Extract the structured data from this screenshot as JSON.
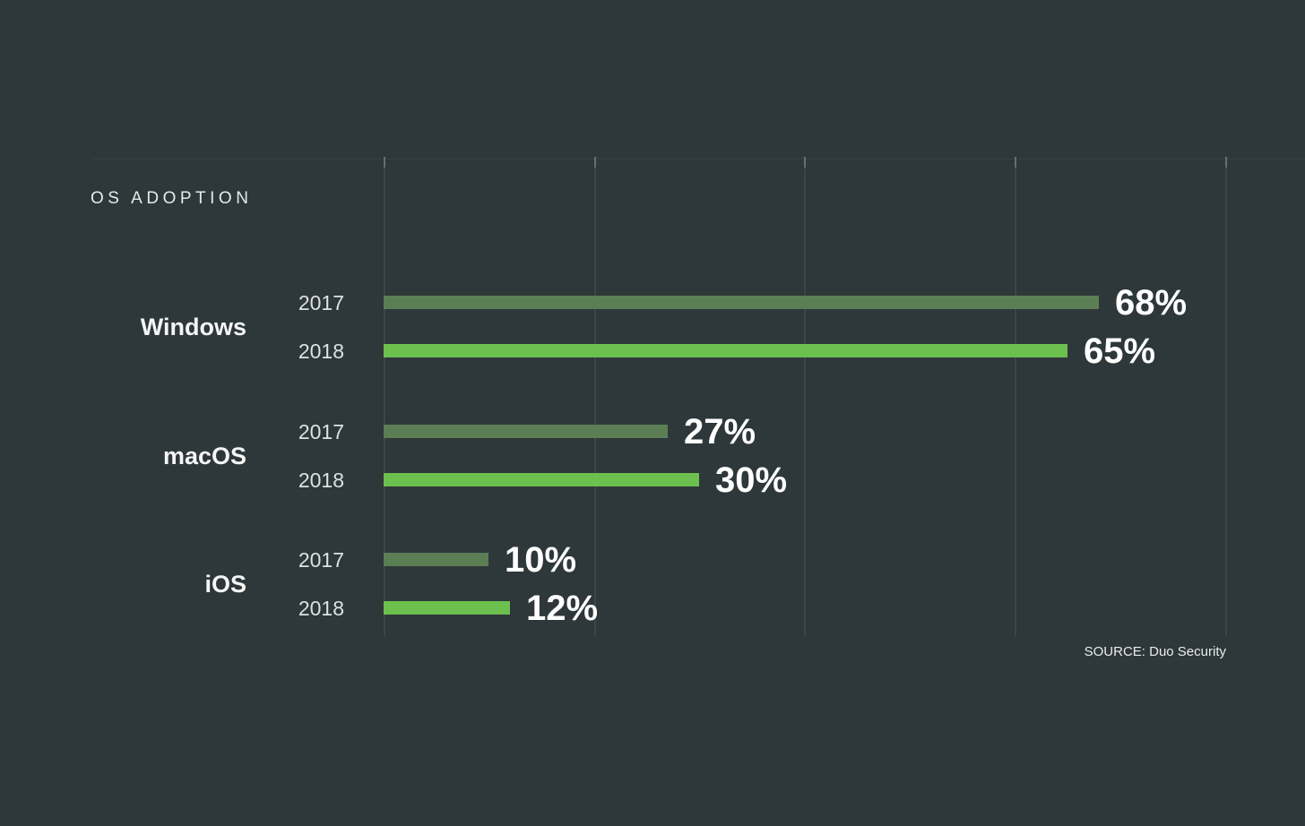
{
  "page": {
    "background_color": "#2e373a"
  },
  "chart_data": {
    "type": "bar",
    "orientation": "horizontal",
    "title": "OS ADOPTION",
    "categories": [
      "Windows",
      "macOS",
      "iOS"
    ],
    "series": [
      {
        "name": "2017",
        "values": [
          68,
          27,
          10
        ],
        "color": "#5b7e55"
      },
      {
        "name": "2018",
        "values": [
          65,
          30,
          12
        ],
        "color": "#6cc04e"
      }
    ],
    "value_suffix": "%",
    "xlim": [
      0,
      80
    ],
    "gridline_step": 20,
    "grid": true,
    "legend_position": "none",
    "value_labels": "end-of-bar",
    "source": "SOURCE: Duo Security"
  }
}
